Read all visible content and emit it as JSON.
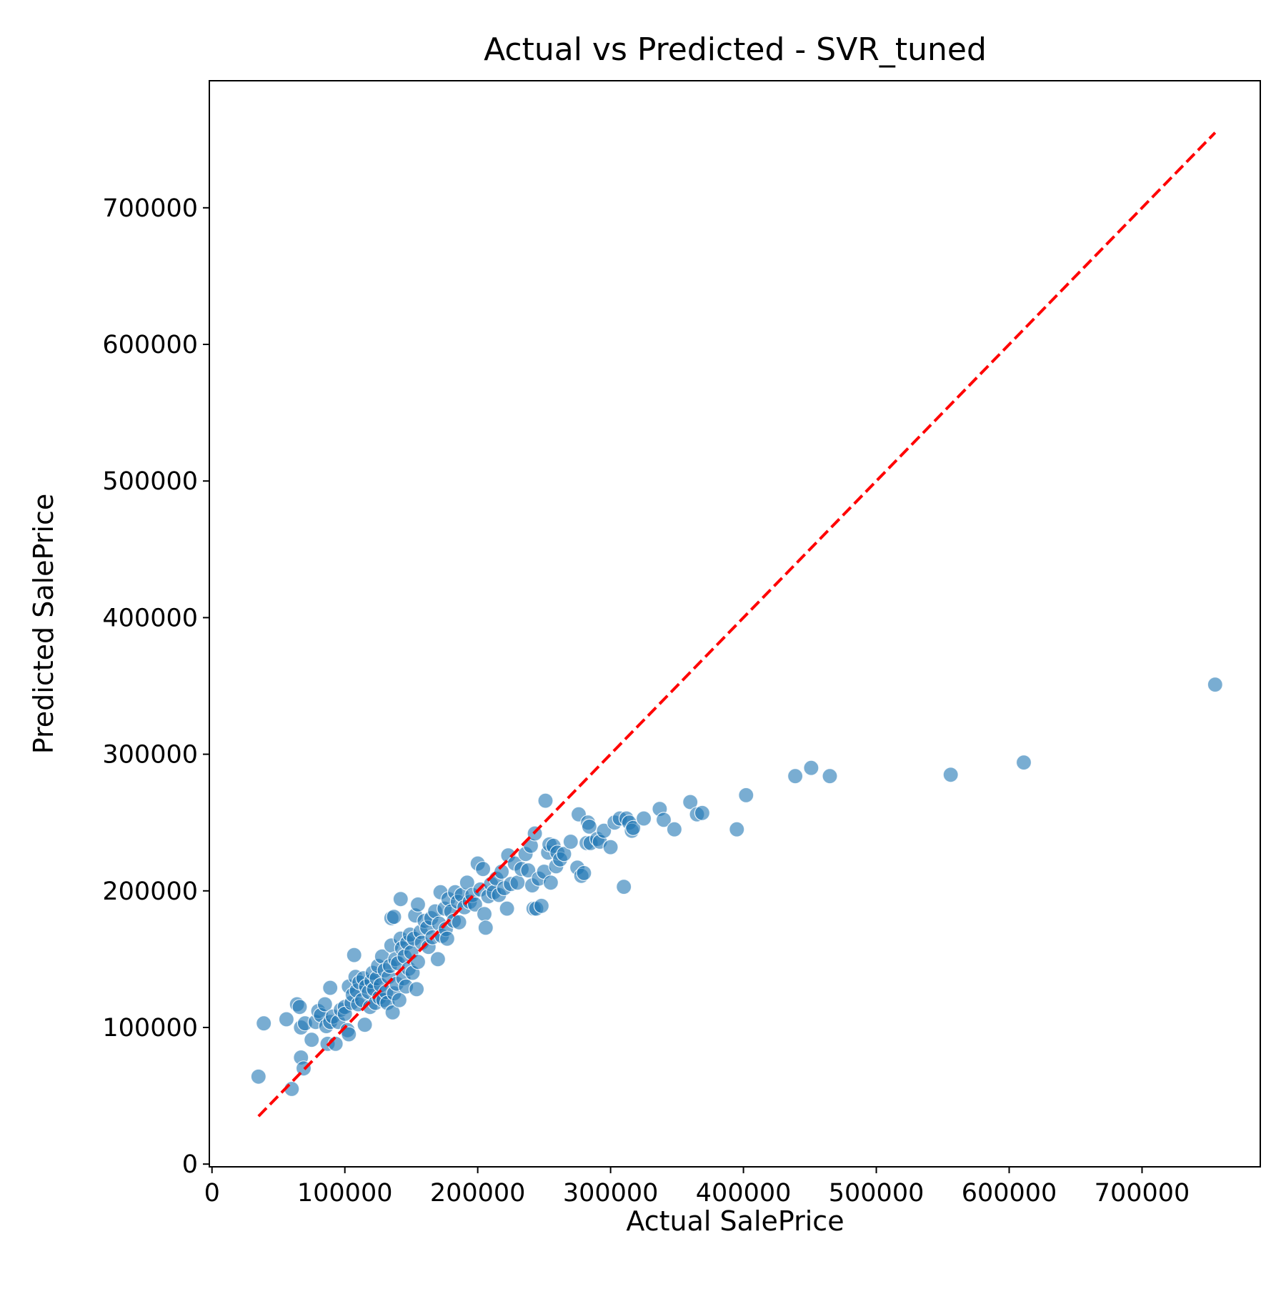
{
  "chart_data": {
    "type": "scatter",
    "title": "Actual vs Predicted - SVR_tuned",
    "xlabel": "Actual SalePrice",
    "ylabel": "Predicted SalePrice",
    "xlim": [
      -2000,
      789000
    ],
    "ylim": [
      -2000,
      793000
    ],
    "xticks": [
      0,
      100000,
      200000,
      300000,
      400000,
      500000,
      600000,
      700000
    ],
    "yticks": [
      0,
      100000,
      200000,
      300000,
      400000,
      500000,
      600000,
      700000
    ],
    "xtick_labels": [
      "0",
      "100000",
      "200000",
      "300000",
      "400000",
      "500000",
      "600000",
      "700000"
    ],
    "ytick_labels": [
      "0",
      "100000",
      "200000",
      "300000",
      "400000",
      "500000",
      "600000",
      "700000"
    ],
    "grid": false,
    "marker_color": "#1f77b4",
    "reference_line": {
      "color": "#ff0000",
      "style": "dashed",
      "from": [
        35000,
        35000
      ],
      "to": [
        755000,
        755000
      ]
    },
    "points": [
      [
        35000,
        64000
      ],
      [
        39000,
        103000
      ],
      [
        56000,
        106000
      ],
      [
        60000,
        55000
      ],
      [
        64000,
        117000
      ],
      [
        66000,
        115000
      ],
      [
        67000,
        100000
      ],
      [
        67000,
        78000
      ],
      [
        69000,
        70000
      ],
      [
        70000,
        103000
      ],
      [
        75000,
        91000
      ],
      [
        78000,
        104000
      ],
      [
        80000,
        112000
      ],
      [
        82000,
        109000
      ],
      [
        85000,
        117000
      ],
      [
        86000,
        101000
      ],
      [
        87000,
        88000
      ],
      [
        89000,
        104000
      ],
      [
        89000,
        129000
      ],
      [
        91000,
        108000
      ],
      [
        93000,
        88000
      ],
      [
        95000,
        104000
      ],
      [
        97000,
        113000
      ],
      [
        100000,
        115000
      ],
      [
        100000,
        110000
      ],
      [
        102000,
        98000
      ],
      [
        103000,
        95000
      ],
      [
        103000,
        130000
      ],
      [
        105000,
        118000
      ],
      [
        106000,
        124000
      ],
      [
        107000,
        153000
      ],
      [
        108000,
        137000
      ],
      [
        109000,
        127000
      ],
      [
        110000,
        117000
      ],
      [
        111000,
        133000
      ],
      [
        113000,
        120000
      ],
      [
        114000,
        136000
      ],
      [
        115000,
        102000
      ],
      [
        116000,
        130000
      ],
      [
        118000,
        126000
      ],
      [
        119000,
        115000
      ],
      [
        120000,
        134000
      ],
      [
        121000,
        140000
      ],
      [
        122000,
        128000
      ],
      [
        123000,
        118000
      ],
      [
        124000,
        136000
      ],
      [
        125000,
        145000
      ],
      [
        126000,
        122000
      ],
      [
        127000,
        131000
      ],
      [
        128000,
        152000
      ],
      [
        129000,
        120000
      ],
      [
        130000,
        142000
      ],
      [
        131000,
        126000
      ],
      [
        132000,
        118000
      ],
      [
        133000,
        137000
      ],
      [
        134000,
        145000
      ],
      [
        135000,
        160000
      ],
      [
        135000,
        180000
      ],
      [
        136000,
        111000
      ],
      [
        137000,
        125000
      ],
      [
        137000,
        181000
      ],
      [
        138000,
        150000
      ],
      [
        139000,
        132000
      ],
      [
        140000,
        147000
      ],
      [
        141000,
        120000
      ],
      [
        142000,
        194000
      ],
      [
        142000,
        165000
      ],
      [
        143000,
        158000
      ],
      [
        144000,
        136000
      ],
      [
        145000,
        152000
      ],
      [
        146000,
        130000
      ],
      [
        147000,
        162000
      ],
      [
        148000,
        143000
      ],
      [
        149000,
        168000
      ],
      [
        150000,
        155000
      ],
      [
        151000,
        140000
      ],
      [
        152000,
        165000
      ],
      [
        153000,
        182000
      ],
      [
        154000,
        128000
      ],
      [
        155000,
        190000
      ],
      [
        155000,
        148000
      ],
      [
        157000,
        170000
      ],
      [
        158000,
        162000
      ],
      [
        160000,
        178000
      ],
      [
        162000,
        173000
      ],
      [
        163000,
        159000
      ],
      [
        165000,
        180000
      ],
      [
        166000,
        166000
      ],
      [
        168000,
        185000
      ],
      [
        170000,
        150000
      ],
      [
        171000,
        176000
      ],
      [
        172000,
        199000
      ],
      [
        173000,
        167000
      ],
      [
        175000,
        187000
      ],
      [
        176000,
        172000
      ],
      [
        177000,
        165000
      ],
      [
        178000,
        194000
      ],
      [
        180000,
        185000
      ],
      [
        182000,
        178000
      ],
      [
        183000,
        199000
      ],
      [
        185000,
        192000
      ],
      [
        186000,
        177000
      ],
      [
        188000,
        197000
      ],
      [
        190000,
        188000
      ],
      [
        192000,
        206000
      ],
      [
        194000,
        192000
      ],
      [
        196000,
        197000
      ],
      [
        198000,
        190000
      ],
      [
        200000,
        220000
      ],
      [
        202000,
        201000
      ],
      [
        204000,
        216000
      ],
      [
        205000,
        183000
      ],
      [
        206000,
        173000
      ],
      [
        208000,
        196000
      ],
      [
        210000,
        205000
      ],
      [
        212000,
        199000
      ],
      [
        214000,
        209000
      ],
      [
        216000,
        197000
      ],
      [
        218000,
        214000
      ],
      [
        220000,
        202000
      ],
      [
        222000,
        187000
      ],
      [
        223000,
        226000
      ],
      [
        225000,
        205000
      ],
      [
        228000,
        220000
      ],
      [
        230000,
        206000
      ],
      [
        233000,
        216000
      ],
      [
        236000,
        227000
      ],
      [
        238000,
        215000
      ],
      [
        240000,
        233000
      ],
      [
        241000,
        204000
      ],
      [
        242000,
        187000
      ],
      [
        243000,
        242000
      ],
      [
        244000,
        187000
      ],
      [
        246000,
        209000
      ],
      [
        248000,
        189000
      ],
      [
        250000,
        214000
      ],
      [
        251000,
        266000
      ],
      [
        253000,
        228000
      ],
      [
        254000,
        234000
      ],
      [
        255000,
        206000
      ],
      [
        257000,
        233000
      ],
      [
        259000,
        218000
      ],
      [
        260000,
        228000
      ],
      [
        262000,
        223000
      ],
      [
        265000,
        227000
      ],
      [
        270000,
        236000
      ],
      [
        275000,
        217000
      ],
      [
        276000,
        256000
      ],
      [
        278000,
        211000
      ],
      [
        280000,
        213000
      ],
      [
        282000,
        235000
      ],
      [
        283000,
        250000
      ],
      [
        284000,
        247000
      ],
      [
        285000,
        235000
      ],
      [
        290000,
        238000
      ],
      [
        292000,
        236000
      ],
      [
        295000,
        244000
      ],
      [
        300000,
        232000
      ],
      [
        303000,
        250000
      ],
      [
        307000,
        253000
      ],
      [
        310000,
        203000
      ],
      [
        312000,
        253000
      ],
      [
        314000,
        250000
      ],
      [
        316000,
        244000
      ],
      [
        317000,
        246000
      ],
      [
        325000,
        253000
      ],
      [
        337000,
        260000
      ],
      [
        340000,
        252000
      ],
      [
        348000,
        245000
      ],
      [
        360000,
        265000
      ],
      [
        365000,
        256000
      ],
      [
        369000,
        257000
      ],
      [
        395000,
        245000
      ],
      [
        402000,
        270000
      ],
      [
        439000,
        284000
      ],
      [
        451000,
        290000
      ],
      [
        465000,
        284000
      ],
      [
        556000,
        285000
      ],
      [
        611000,
        294000
      ],
      [
        755000,
        351000
      ]
    ]
  }
}
